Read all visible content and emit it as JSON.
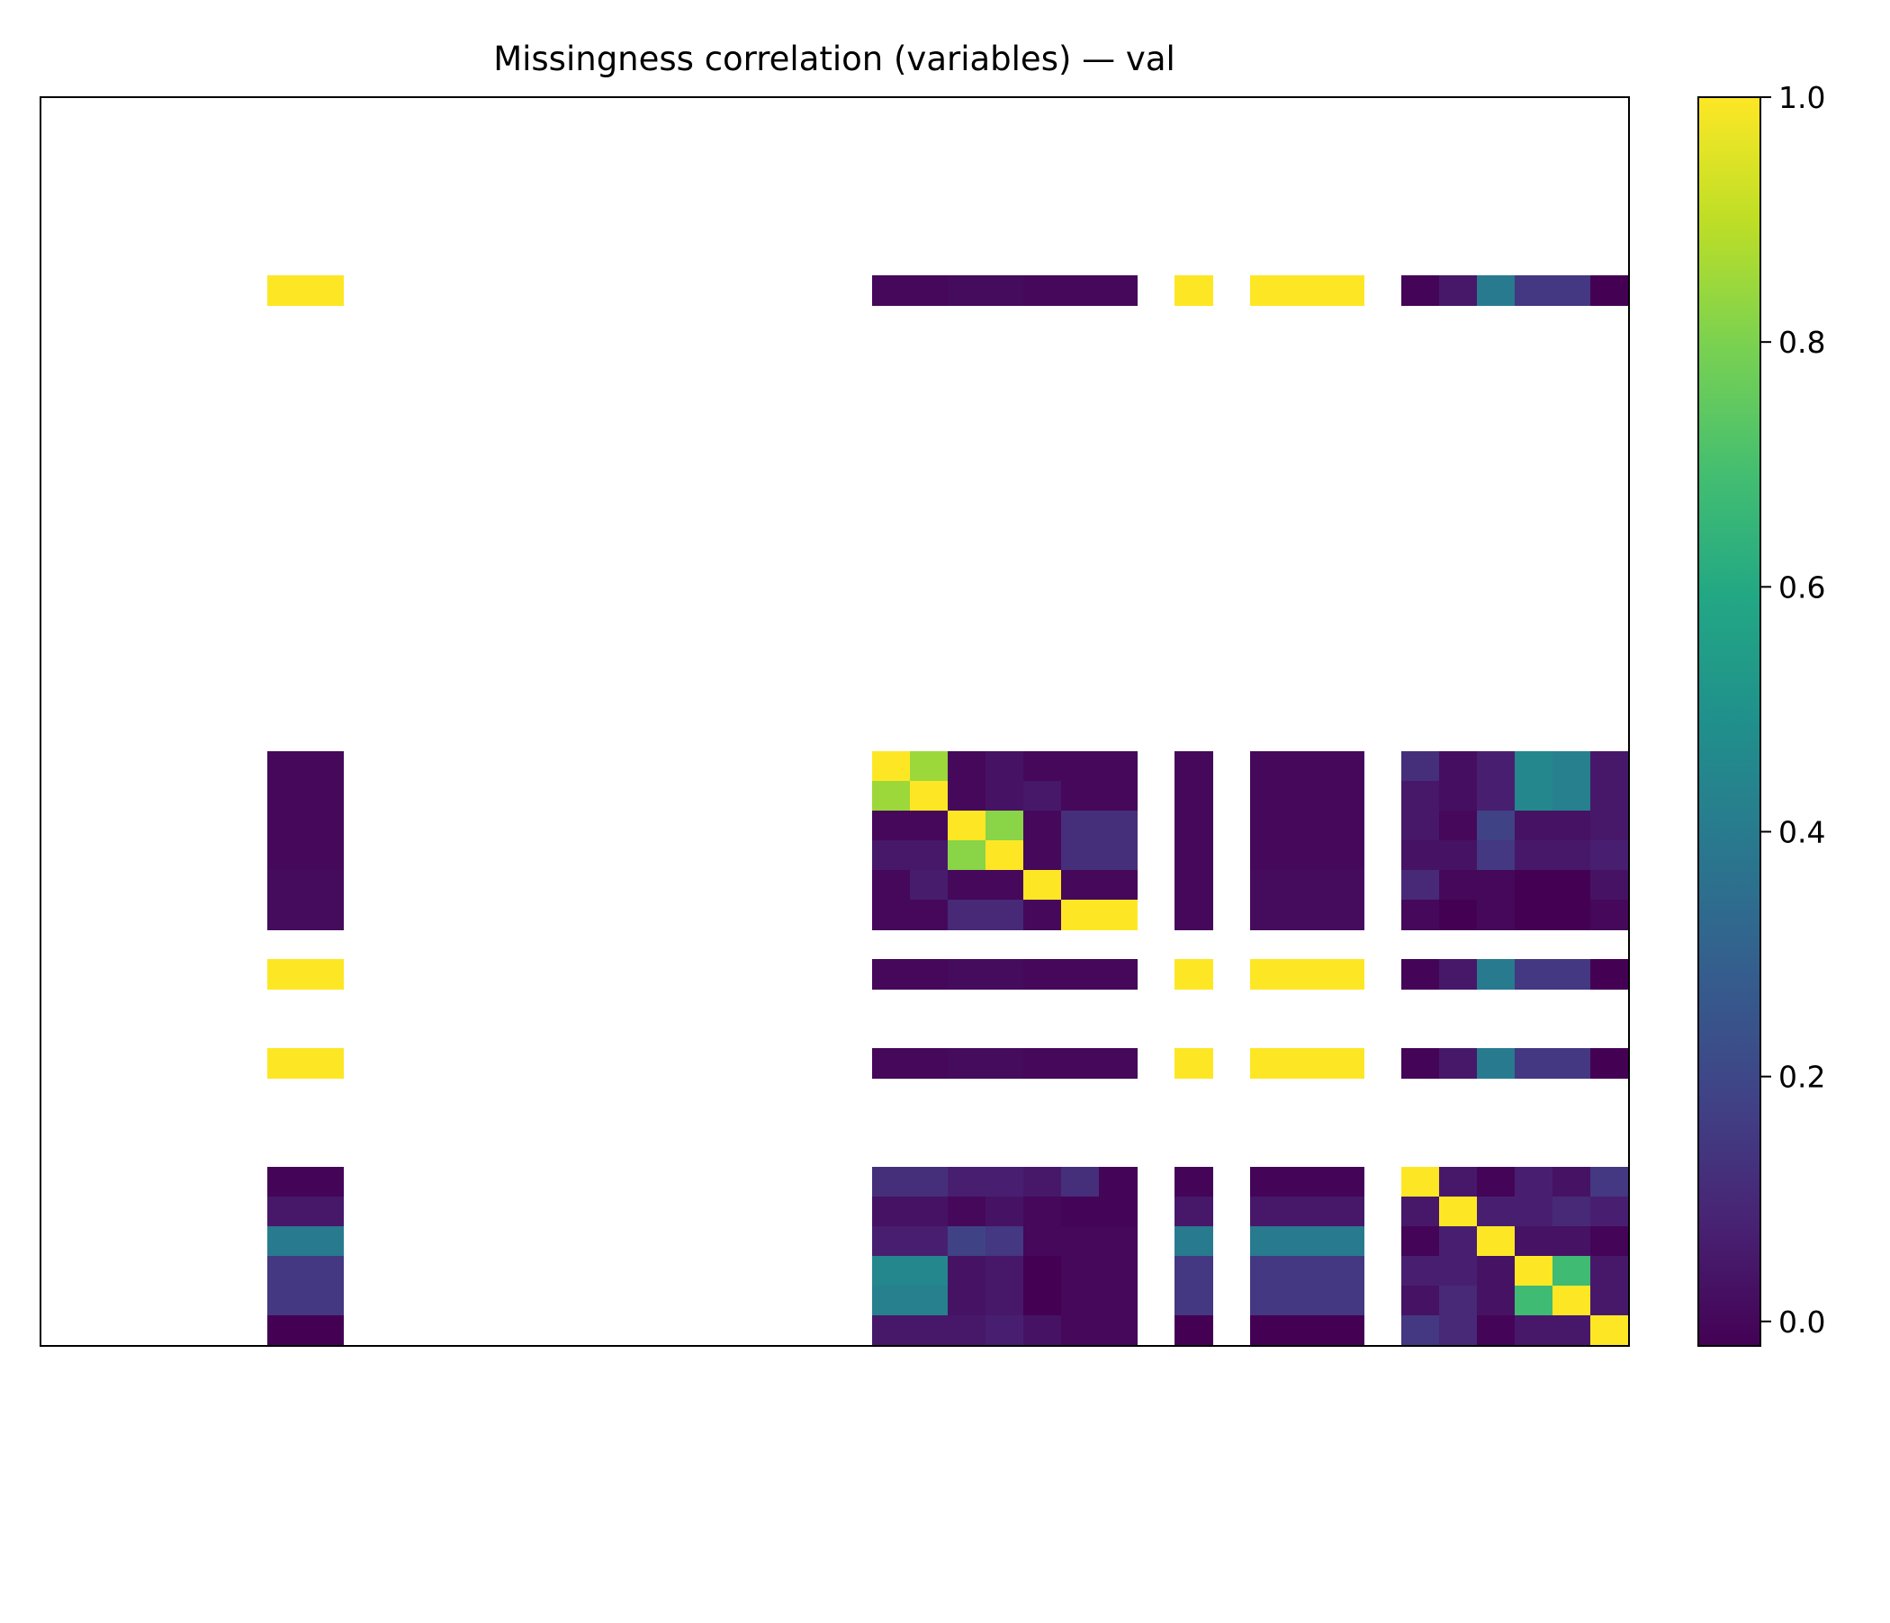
{
  "chart_data": {
    "type": "heatmap",
    "title": "Missingness correlation (variables) — val",
    "xlabel": "",
    "ylabel": "",
    "grid": false,
    "colormap": "viridis",
    "color_range": [
      -0.02,
      1.0
    ],
    "n_rows": 42,
    "n_cols": 42,
    "missing_color": "#ffffff",
    "colorbar": {
      "ticks": [
        0.0,
        0.2,
        0.4,
        0.6,
        0.8,
        1.0
      ],
      "tick_labels": [
        "0.0",
        "0.2",
        "0.4",
        "0.6",
        "0.8",
        "1.0"
      ]
    },
    "row_index": [
      6,
      22,
      23,
      24,
      25,
      26,
      27,
      29,
      32,
      36,
      37,
      38,
      39,
      40,
      41
    ],
    "col_index": [
      6,
      7,
      22,
      23,
      24,
      25,
      26,
      27,
      28,
      30,
      32,
      33,
      34,
      36,
      37,
      38,
      39,
      40,
      41
    ],
    "values": [
      [
        1.0,
        1.0,
        0.0,
        0.0,
        0.01,
        0.01,
        0.0,
        0.0,
        0.0,
        1.0,
        1.0,
        1.0,
        1.0,
        -0.01,
        0.05,
        0.4,
        0.15,
        0.15,
        -0.02
      ],
      [
        0.0,
        0.0,
        1.0,
        0.85,
        0.0,
        0.03,
        0.0,
        0.0,
        0.0,
        0.0,
        0.0,
        0.0,
        0.0,
        0.12,
        0.02,
        0.07,
        0.45,
        0.42,
        0.05
      ],
      [
        0.0,
        0.0,
        0.85,
        1.0,
        0.0,
        0.03,
        0.05,
        0.0,
        0.0,
        0.0,
        0.0,
        0.0,
        0.0,
        0.05,
        0.02,
        0.07,
        0.45,
        0.42,
        0.05
      ],
      [
        0.0,
        0.0,
        0.0,
        0.0,
        1.0,
        0.82,
        0.0,
        0.12,
        0.12,
        0.0,
        0.0,
        0.0,
        0.0,
        0.05,
        0.0,
        0.18,
        0.03,
        0.03,
        0.05
      ],
      [
        0.0,
        0.0,
        0.05,
        0.05,
        0.82,
        1.0,
        0.0,
        0.12,
        0.12,
        0.0,
        0.0,
        0.0,
        0.0,
        0.03,
        0.03,
        0.15,
        0.05,
        0.05,
        0.07
      ],
      [
        0.01,
        0.01,
        0.0,
        0.06,
        0.0,
        0.0,
        1.0,
        0.0,
        0.0,
        0.0,
        0.01,
        0.01,
        0.01,
        0.1,
        0.0,
        0.0,
        -0.02,
        -0.02,
        0.03
      ],
      [
        0.01,
        0.01,
        0.0,
        0.0,
        0.1,
        0.1,
        0.0,
        1.0,
        1.0,
        0.0,
        0.01,
        0.01,
        0.01,
        0.0,
        -0.02,
        0.0,
        -0.02,
        -0.02,
        0.0
      ],
      [
        1.0,
        1.0,
        0.0,
        0.0,
        0.01,
        0.01,
        0.0,
        0.0,
        0.0,
        1.0,
        1.0,
        1.0,
        1.0,
        -0.01,
        0.05,
        0.4,
        0.15,
        0.15,
        -0.02
      ],
      [
        1.0,
        1.0,
        0.0,
        0.0,
        0.01,
        0.01,
        0.0,
        0.0,
        0.0,
        1.0,
        1.0,
        1.0,
        1.0,
        -0.01,
        0.05,
        0.4,
        0.15,
        0.15,
        -0.02
      ],
      [
        -0.01,
        -0.01,
        0.12,
        0.12,
        0.07,
        0.07,
        0.05,
        0.12,
        -0.01,
        -0.01,
        -0.01,
        -0.01,
        -0.01,
        1.0,
        0.05,
        -0.01,
        0.07,
        0.03,
        0.15
      ],
      [
        0.05,
        0.05,
        0.03,
        0.03,
        0.0,
        0.03,
        0.0,
        -0.01,
        -0.01,
        0.05,
        0.05,
        0.05,
        0.05,
        0.05,
        1.0,
        0.07,
        0.07,
        0.1,
        0.07
      ],
      [
        0.4,
        0.4,
        0.07,
        0.07,
        0.18,
        0.15,
        0.0,
        0.0,
        0.0,
        0.4,
        0.4,
        0.4,
        0.4,
        -0.01,
        0.07,
        1.0,
        0.03,
        0.03,
        -0.01
      ],
      [
        0.15,
        0.15,
        0.45,
        0.45,
        0.03,
        0.05,
        -0.02,
        0.0,
        0.0,
        0.15,
        0.15,
        0.15,
        0.15,
        0.07,
        0.07,
        0.03,
        1.0,
        0.68,
        0.05
      ],
      [
        0.15,
        0.15,
        0.42,
        0.42,
        0.03,
        0.05,
        -0.02,
        0.0,
        0.0,
        0.15,
        0.15,
        0.15,
        0.15,
        0.03,
        0.1,
        0.03,
        0.68,
        1.0,
        0.05
      ],
      [
        -0.02,
        -0.02,
        0.05,
        0.05,
        0.05,
        0.07,
        0.03,
        0.0,
        0.0,
        -0.02,
        -0.02,
        -0.02,
        -0.02,
        0.15,
        0.1,
        -0.01,
        0.05,
        0.05,
        1.0
      ]
    ]
  }
}
